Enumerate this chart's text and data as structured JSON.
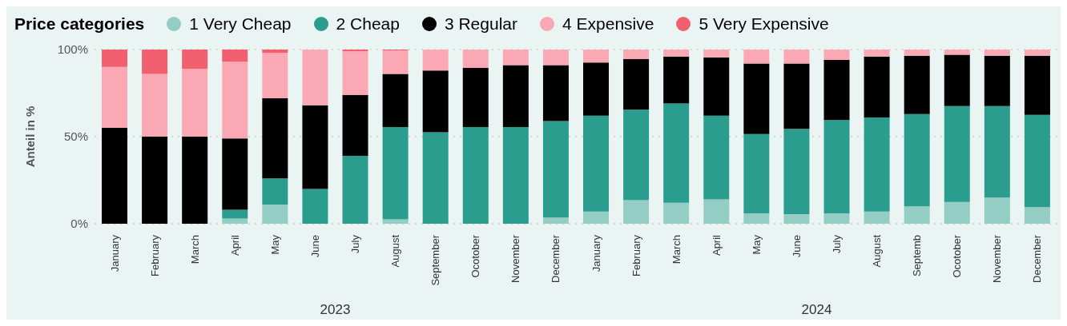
{
  "chart_data": {
    "type": "bar",
    "stacked": true,
    "legend_title": "Price categories",
    "ylabel": "Anteil in %",
    "categories": [
      "January",
      "February",
      "March",
      "April",
      "May",
      "June",
      "July",
      "August",
      "September",
      "Ocotober",
      "November",
      "December",
      "January",
      "February",
      "March",
      "April",
      "May",
      "June",
      "July",
      "August",
      "Septemb",
      "Ocotober",
      "November",
      "December"
    ],
    "annotations": [
      "2023",
      "2024"
    ],
    "series": [
      {
        "name": "1 Very Cheap",
        "color": "#94cdc4",
        "values": [
          0,
          0,
          0,
          3,
          11,
          0,
          0,
          2.5,
          0,
          0,
          0,
          3.5,
          7,
          13.5,
          12,
          14,
          6,
          5.5,
          6,
          7,
          10,
          12.5,
          15,
          9.5
        ]
      },
      {
        "name": "2 Cheap",
        "color": "#2a9d8f",
        "values": [
          0,
          0,
          0,
          5,
          15,
          20,
          39,
          53,
          52.5,
          55.5,
          55.5,
          55.5,
          55,
          52,
          57,
          48,
          45.5,
          49,
          53.5,
          54,
          53,
          55,
          52.5,
          53
        ]
      },
      {
        "name": "3 Regular",
        "color": "#000000",
        "values": [
          55,
          50,
          50,
          41,
          46,
          48,
          35,
          30.5,
          35.5,
          34,
          35.5,
          32,
          30.5,
          29,
          27,
          33.5,
          40.5,
          37.5,
          34.5,
          35,
          33.5,
          29.5,
          29,
          34
        ]
      },
      {
        "name": "4 Expensive",
        "color": "#f9a8b4",
        "values": [
          35,
          36,
          39,
          44,
          26,
          32,
          25,
          13.5,
          12,
          10.5,
          9,
          9,
          7.5,
          5.5,
          4,
          4.5,
          8,
          8,
          6,
          4,
          3.5,
          3,
          3.5,
          3.5
        ]
      },
      {
        "name": "5 Very Expensive",
        "color": "#f2606f",
        "values": [
          10,
          14,
          11,
          7,
          2,
          0,
          1,
          0.5,
          0,
          0,
          0,
          0,
          0,
          0,
          0,
          0,
          0,
          0,
          0,
          0,
          0,
          0,
          0,
          0
        ]
      }
    ],
    "ylim": [
      0,
      100
    ],
    "yticks": [
      {
        "value": 0,
        "label": "0%"
      },
      {
        "value": 50,
        "label": "50%"
      },
      {
        "value": 100,
        "label": "100%"
      }
    ],
    "grid": "y",
    "legend": "top left"
  }
}
